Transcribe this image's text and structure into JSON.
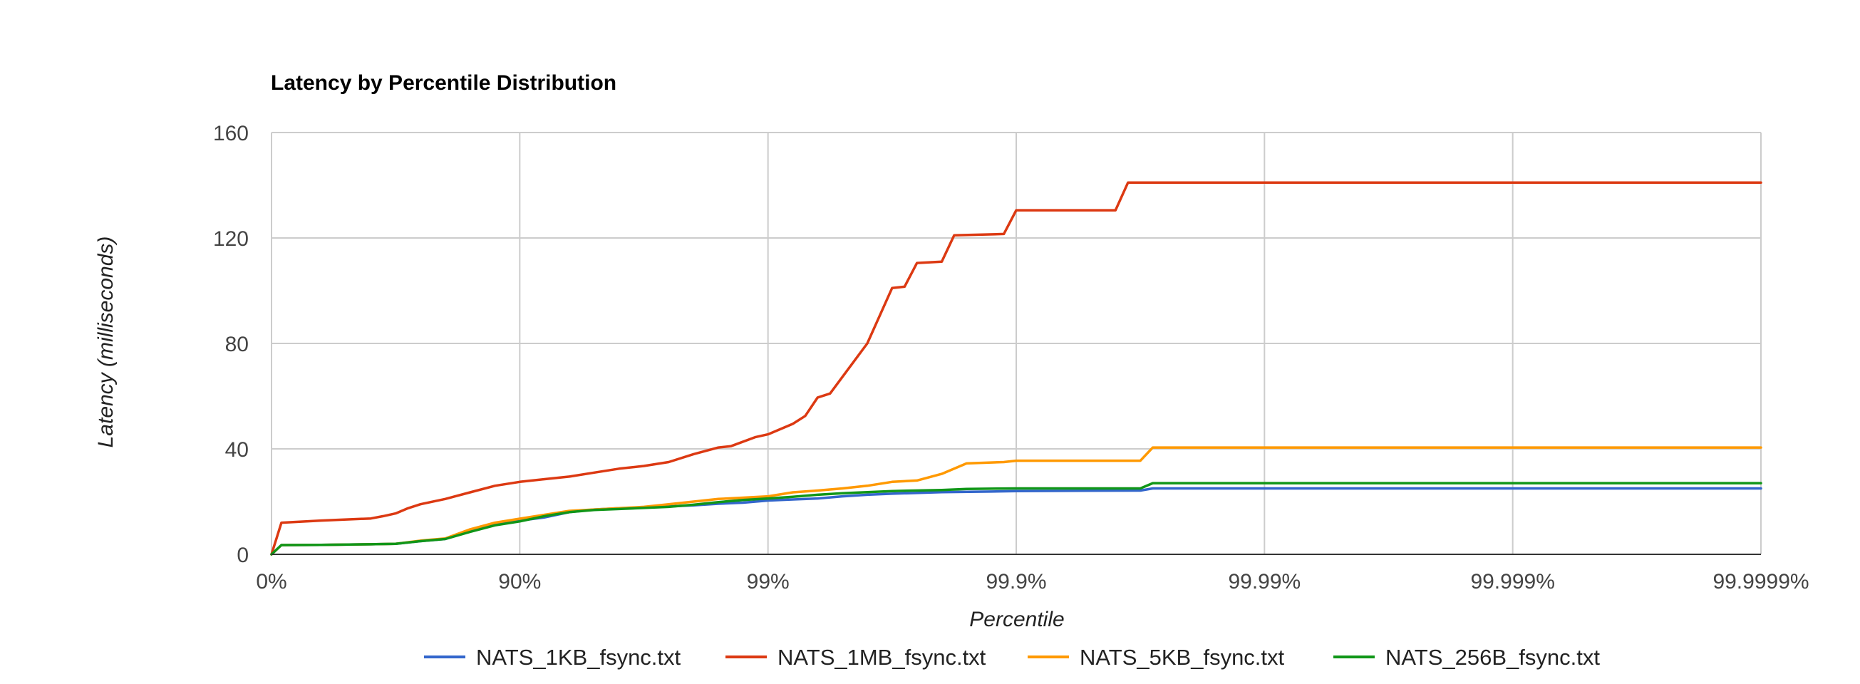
{
  "chart_data": {
    "type": "line",
    "title": "Latency by Percentile Distribution",
    "xlabel": "Percentile",
    "ylabel": "Latency (milliseconds)",
    "x_scale": "percentile-log (nines)",
    "x_ticks": [
      "0%",
      "90%",
      "99%",
      "99.9%",
      "99.99%",
      "99.999%",
      "99.9999%"
    ],
    "ylim": [
      0,
      160
    ],
    "y_ticks": [
      "0",
      "40",
      "80",
      "120",
      "160"
    ],
    "grid": true,
    "legend_position": "bottom",
    "series": [
      {
        "name": "NATS_1KB_fsync.txt",
        "color": "#3366cc",
        "points": [
          [
            0,
            0
          ],
          [
            0.04,
            3.5
          ],
          [
            0.2,
            3.6
          ],
          [
            0.4,
            3.8
          ],
          [
            0.5,
            4.0
          ],
          [
            0.6,
            5.0
          ],
          [
            0.7,
            5.8
          ],
          [
            0.8,
            9.0
          ],
          [
            0.9,
            11.5
          ],
          [
            1.0,
            12.8
          ],
          [
            1.1,
            14.0
          ],
          [
            1.2,
            16.0
          ],
          [
            1.3,
            17.0
          ],
          [
            1.4,
            17.5
          ],
          [
            1.5,
            17.8
          ],
          [
            1.6,
            18.2
          ],
          [
            1.7,
            18.6
          ],
          [
            1.8,
            19.2
          ],
          [
            1.9,
            19.6
          ],
          [
            2.0,
            20.4
          ],
          [
            2.1,
            20.8
          ],
          [
            2.2,
            21.2
          ],
          [
            2.3,
            22.0
          ],
          [
            2.4,
            22.6
          ],
          [
            2.5,
            23.0
          ],
          [
            2.7,
            23.6
          ],
          [
            2.9,
            23.8
          ],
          [
            3.0,
            24.0
          ],
          [
            3.5,
            24.2
          ],
          [
            3.55,
            25.0
          ],
          [
            6.0,
            25.0
          ]
        ]
      },
      {
        "name": "NATS_1MB_fsync.txt",
        "color": "#dc3912",
        "points": [
          [
            0,
            0
          ],
          [
            0.04,
            12.0
          ],
          [
            0.2,
            12.8
          ],
          [
            0.4,
            13.6
          ],
          [
            0.45,
            14.5
          ],
          [
            0.5,
            15.5
          ],
          [
            0.55,
            17.5
          ],
          [
            0.6,
            19.0
          ],
          [
            0.7,
            21.0
          ],
          [
            0.8,
            23.5
          ],
          [
            0.9,
            26.0
          ],
          [
            1.0,
            27.5
          ],
          [
            1.1,
            28.5
          ],
          [
            1.2,
            29.5
          ],
          [
            1.3,
            31.0
          ],
          [
            1.4,
            32.5
          ],
          [
            1.5,
            33.5
          ],
          [
            1.6,
            35.0
          ],
          [
            1.7,
            38.0
          ],
          [
            1.8,
            40.5
          ],
          [
            1.85,
            41.0
          ],
          [
            1.95,
            44.5
          ],
          [
            2.0,
            45.5
          ],
          [
            2.1,
            49.5
          ],
          [
            2.15,
            52.5
          ],
          [
            2.2,
            59.5
          ],
          [
            2.25,
            61.0
          ],
          [
            2.4,
            80.0
          ],
          [
            2.5,
            101.0
          ],
          [
            2.55,
            101.5
          ],
          [
            2.6,
            110.5
          ],
          [
            2.7,
            111.0
          ],
          [
            2.75,
            121.0
          ],
          [
            2.95,
            121.5
          ],
          [
            3.0,
            130.5
          ],
          [
            3.4,
            130.5
          ],
          [
            3.45,
            141.0
          ],
          [
            6.0,
            141.0
          ]
        ]
      },
      {
        "name": "NATS_5KB_fsync.txt",
        "color": "#ff9900",
        "points": [
          [
            0,
            0
          ],
          [
            0.04,
            3.5
          ],
          [
            0.2,
            3.6
          ],
          [
            0.4,
            3.8
          ],
          [
            0.5,
            4.0
          ],
          [
            0.6,
            5.2
          ],
          [
            0.7,
            6.0
          ],
          [
            0.8,
            9.5
          ],
          [
            0.9,
            12.0
          ],
          [
            1.0,
            13.5
          ],
          [
            1.1,
            15.0
          ],
          [
            1.2,
            16.5
          ],
          [
            1.3,
            17.0
          ],
          [
            1.4,
            17.5
          ],
          [
            1.5,
            18.0
          ],
          [
            1.6,
            19.0
          ],
          [
            1.7,
            20.0
          ],
          [
            1.8,
            21.0
          ],
          [
            1.9,
            21.5
          ],
          [
            2.0,
            22.0
          ],
          [
            2.1,
            23.5
          ],
          [
            2.2,
            24.2
          ],
          [
            2.3,
            25.0
          ],
          [
            2.4,
            26.0
          ],
          [
            2.5,
            27.5
          ],
          [
            2.6,
            28.0
          ],
          [
            2.7,
            30.5
          ],
          [
            2.8,
            34.5
          ],
          [
            2.95,
            35.0
          ],
          [
            3.0,
            35.5
          ],
          [
            3.5,
            35.5
          ],
          [
            3.55,
            40.5
          ],
          [
            6.0,
            40.5
          ]
        ]
      },
      {
        "name": "NATS_256B_fsync.txt",
        "color": "#109618",
        "points": [
          [
            0,
            0
          ],
          [
            0.04,
            3.5
          ],
          [
            0.2,
            3.6
          ],
          [
            0.4,
            3.8
          ],
          [
            0.5,
            4.0
          ],
          [
            0.6,
            5.0
          ],
          [
            0.7,
            5.8
          ],
          [
            0.8,
            8.5
          ],
          [
            0.9,
            11.0
          ],
          [
            1.0,
            12.5
          ],
          [
            1.1,
            14.5
          ],
          [
            1.2,
            16.0
          ],
          [
            1.3,
            16.8
          ],
          [
            1.4,
            17.2
          ],
          [
            1.5,
            17.6
          ],
          [
            1.6,
            18.0
          ],
          [
            1.7,
            18.8
          ],
          [
            1.8,
            19.8
          ],
          [
            1.9,
            20.6
          ],
          [
            2.0,
            21.2
          ],
          [
            2.1,
            21.8
          ],
          [
            2.2,
            22.6
          ],
          [
            2.3,
            23.2
          ],
          [
            2.4,
            23.6
          ],
          [
            2.5,
            24.0
          ],
          [
            2.7,
            24.4
          ],
          [
            2.8,
            24.8
          ],
          [
            3.0,
            25.0
          ],
          [
            3.5,
            25.0
          ],
          [
            3.55,
            27.0
          ],
          [
            6.0,
            27.0
          ]
        ]
      }
    ]
  }
}
